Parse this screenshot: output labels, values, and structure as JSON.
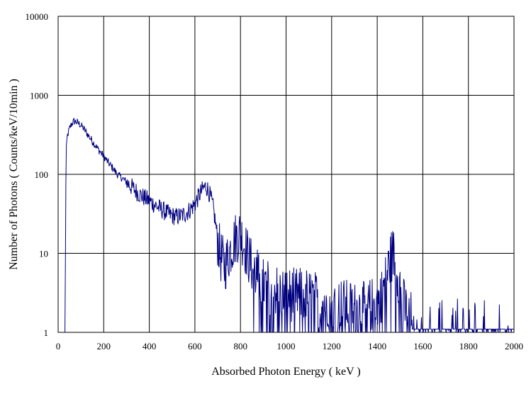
{
  "chart_data": {
    "type": "line",
    "title": "",
    "xlabel": "Absorbed Photon Energy ( keV )",
    "ylabel": "Number of Photons ( Counts/keV/10min )",
    "xlim": [
      0,
      2000
    ],
    "ylim": [
      1,
      10000
    ],
    "y_scale": "log",
    "grid": true,
    "legend": "none",
    "x_ticks": [
      "0",
      "200",
      "400",
      "600",
      "800",
      "1000",
      "1200",
      "1400",
      "1600",
      "1800",
      "2000"
    ],
    "y_ticks": [
      "1",
      "10",
      "100",
      "1000",
      "10000"
    ],
    "line_color": "#000080",
    "series": [
      {
        "name": "",
        "x": [
          30,
          35,
          40,
          50,
          60,
          70,
          80,
          100,
          120,
          140,
          160,
          180,
          200,
          220,
          240,
          260,
          280,
          300,
          320,
          340,
          360,
          380,
          400,
          420,
          440,
          460,
          480,
          500,
          520,
          540,
          560,
          580,
          600,
          620,
          640,
          650,
          660,
          670,
          680,
          690,
          700,
          710,
          720,
          730,
          740,
          750,
          760,
          780,
          800,
          820,
          840,
          860,
          880,
          900,
          950,
          1000,
          1050,
          1100,
          1150,
          1200,
          1250,
          1300,
          1350,
          1400,
          1420,
          1440,
          1460,
          1470,
          1480,
          1500,
          1520,
          1550,
          1600,
          1650,
          1700,
          1750,
          1800,
          1850,
          1900,
          1950,
          2000
        ],
        "y": [
          1,
          220,
          300,
          380,
          440,
          470,
          460,
          420,
          350,
          290,
          240,
          200,
          170,
          140,
          120,
          100,
          90,
          80,
          70,
          62,
          55,
          50,
          46,
          42,
          38,
          35,
          32,
          30,
          29,
          30,
          32,
          36,
          42,
          55,
          68,
          70,
          62,
          50,
          38,
          25,
          15,
          10,
          8,
          7,
          8,
          10,
          12,
          16,
          18,
          12,
          8,
          6,
          5,
          4,
          3.5,
          3,
          3,
          3,
          2.5,
          2.5,
          2.2,
          2,
          2,
          2.5,
          3,
          5,
          9,
          10,
          8,
          4,
          2,
          1.5,
          1.3,
          1.2,
          1.2,
          1.2,
          1.2,
          1.2,
          1.1,
          1.1,
          1.1
        ]
      }
    ]
  }
}
